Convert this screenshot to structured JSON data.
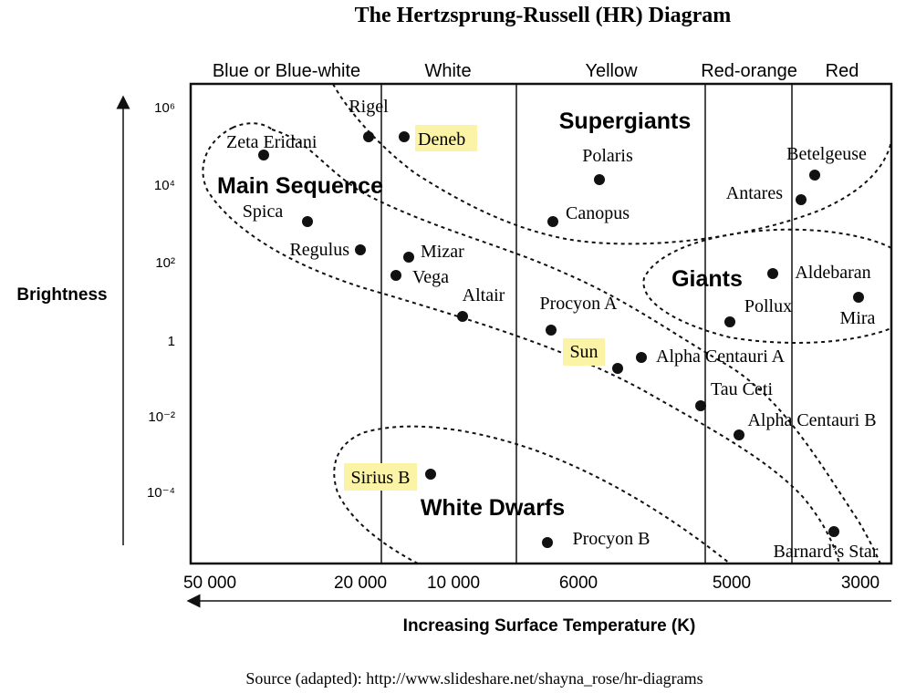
{
  "title": "The Hertzsprung-Russell (HR) Diagram",
  "color_bands": [
    "Blue or Blue-white",
    "White",
    "Yellow",
    "Red-orange",
    "Red"
  ],
  "y_axis": {
    "title": "Brightness",
    "ticks": [
      "10⁶",
      "10⁴",
      "10²",
      "1",
      "10⁻²",
      "10⁻⁴"
    ]
  },
  "x_axis": {
    "title": "Increasing Surface Temperature (K)",
    "ticks": [
      "50 000",
      "20 000",
      "10 000",
      "6000",
      "5000",
      "3000"
    ]
  },
  "regions": {
    "supergiants": "Supergiants",
    "main_sequence": "Main Sequence",
    "giants": "Giants",
    "white_dwarfs": "White Dwarfs"
  },
  "stars": [
    {
      "name": "Rigel",
      "highlight": false
    },
    {
      "name": "Deneb",
      "highlight": true
    },
    {
      "name": "Zeta Eridani",
      "highlight": false
    },
    {
      "name": "Polaris",
      "highlight": false
    },
    {
      "name": "Betelgeuse",
      "highlight": false
    },
    {
      "name": "Antares",
      "highlight": false
    },
    {
      "name": "Canopus",
      "highlight": false
    },
    {
      "name": "Spica",
      "highlight": false
    },
    {
      "name": "Regulus",
      "highlight": false
    },
    {
      "name": "Mizar",
      "highlight": false
    },
    {
      "name": "Vega",
      "highlight": false
    },
    {
      "name": "Altair",
      "highlight": false
    },
    {
      "name": "Procyon A",
      "highlight": false
    },
    {
      "name": "Sun",
      "highlight": true
    },
    {
      "name": "Alpha Centauri A",
      "highlight": false
    },
    {
      "name": "Tau Ceti",
      "highlight": false
    },
    {
      "name": "Alpha Centauri B",
      "highlight": false
    },
    {
      "name": "Aldebaran",
      "highlight": false
    },
    {
      "name": "Pollux",
      "highlight": false
    },
    {
      "name": "Mira",
      "highlight": false
    },
    {
      "name": "Sirius B",
      "highlight": true
    },
    {
      "name": "Procyon B",
      "highlight": false
    },
    {
      "name": "Barnard’s Star",
      "highlight": false
    }
  ],
  "source": "Source (adapted): http://www.slideshare.net/shayna_rose/hr-diagrams",
  "colors": {
    "highlight": "#fbf3a6",
    "ink": "#111111"
  }
}
